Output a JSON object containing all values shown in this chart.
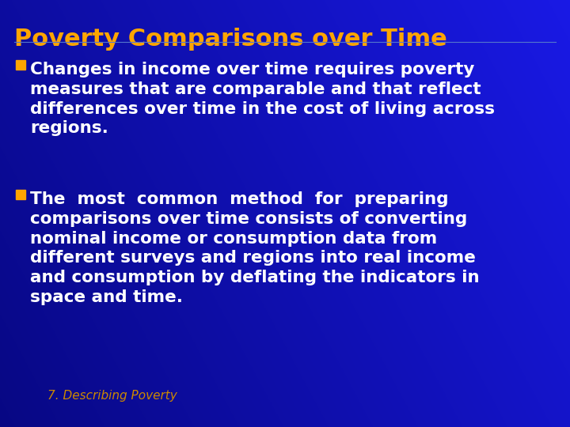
{
  "title": "Poverty Comparisons over Time",
  "title_color": "#FFA500",
  "title_fontsize": 22,
  "bullet_color": "#FFA500",
  "text_color": "#FFFFFF",
  "footer": "7. Describing Poverty",
  "footer_color": "#CC8800",
  "footer_fontsize": 11,
  "text_fontsize": 15.5,
  "bullet1_text": "Changes in income over time requires poverty\nmeasures that are comparable and that reflect\ndifferences over time in the cost of living across\nregions.",
  "bullet2_text": "The  most  common  method  for  preparing\ncomparisons over time consists of converting\nnominal income or consumption data from\ndifferent surveys and regions into real income\nand consumption by deflating the indicators in\nspace and time.",
  "figsize": [
    7.2,
    5.4
  ],
  "dpi": 100
}
